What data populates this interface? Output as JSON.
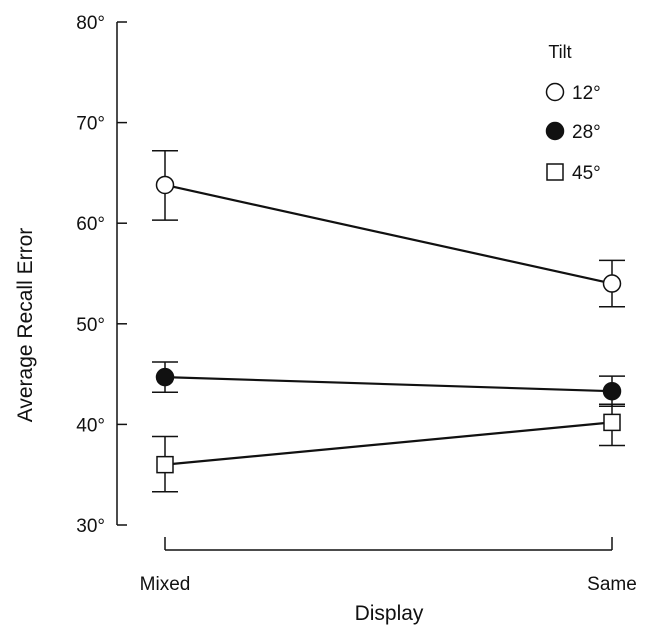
{
  "chart_data": {
    "type": "line",
    "title": "",
    "xlabel": "Display",
    "ylabel": "Average Recall Error",
    "categories": [
      "Mixed",
      "Same"
    ],
    "ylim": [
      30,
      80
    ],
    "yticks": [
      30,
      40,
      50,
      60,
      70,
      80
    ],
    "ytick_labels": [
      "30°",
      "40°",
      "50°",
      "60°",
      "70°",
      "80°"
    ],
    "grid": false,
    "legend": {
      "title": "Tilt",
      "placement": "top-right"
    },
    "series": [
      {
        "name": "12°",
        "marker": "circle-open",
        "values": [
          63.8,
          54.0
        ],
        "error_low": [
          60.3,
          51.7
        ],
        "error_high": [
          67.2,
          56.3
        ]
      },
      {
        "name": "28°",
        "marker": "circle-filled",
        "values": [
          44.7,
          43.3
        ],
        "error_low": [
          43.2,
          41.8
        ],
        "error_high": [
          46.2,
          44.8
        ]
      },
      {
        "name": "45°",
        "marker": "square-open",
        "values": [
          36.0,
          40.2
        ],
        "error_low": [
          33.3,
          37.9
        ],
        "error_high": [
          38.8,
          42.0
        ]
      }
    ],
    "colors": {
      "line": "#111111",
      "marker_fill_open": "#ffffff",
      "marker_fill_solid": "#111111"
    }
  }
}
